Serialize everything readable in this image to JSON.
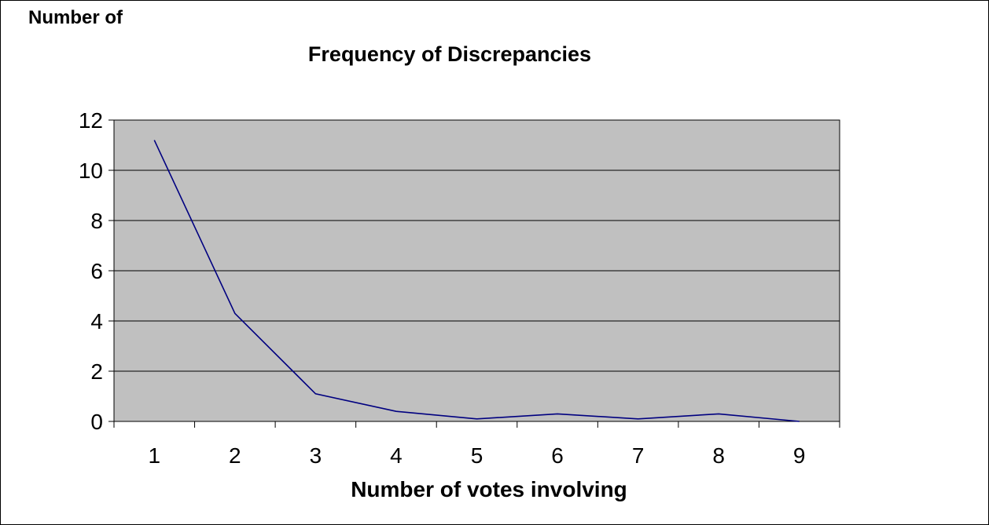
{
  "chart_data": {
    "type": "line",
    "title": "Frequency of Discrepancies",
    "ylabel": "Number of",
    "xlabel": "Number of votes involving",
    "categories": [
      "1",
      "2",
      "3",
      "4",
      "5",
      "6",
      "7",
      "8",
      "9"
    ],
    "series": [
      {
        "values": [
          11.2,
          4.3,
          1.1,
          0.4,
          0.1,
          0.3,
          0.1,
          0.3,
          0.0
        ]
      }
    ],
    "ylim": [
      0,
      12
    ],
    "yticks": [
      "0",
      "2",
      "4",
      "6",
      "8",
      "10",
      "12"
    ],
    "grid": true,
    "legend": "none",
    "colors": {
      "plot_background": "#c0c0c0",
      "line": "#000080",
      "gridline": "#000000",
      "border": "#000000"
    }
  }
}
